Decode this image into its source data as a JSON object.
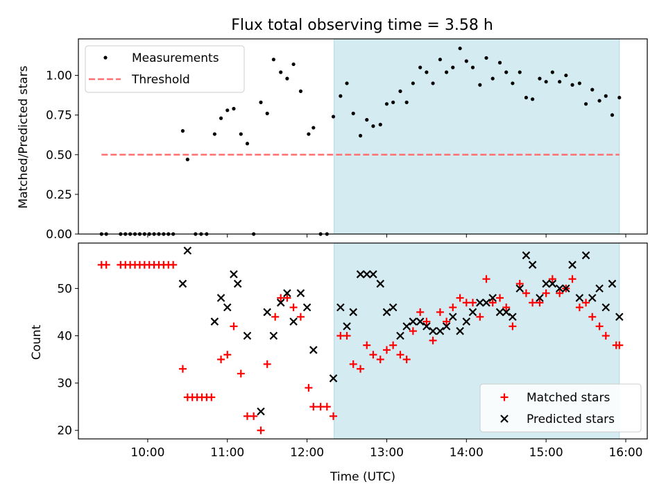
{
  "chart_data": {
    "title": "Flux total observing time = 3.58 h",
    "xlabel": "Time (UTC)",
    "xlim": [
      9.13,
      16.27
    ],
    "xticks": [
      {
        "value": 10,
        "label": "10:00"
      },
      {
        "value": 11,
        "label": "11:00"
      },
      {
        "value": 12,
        "label": "12:00"
      },
      {
        "value": 13,
        "label": "13:00"
      },
      {
        "value": 14,
        "label": "14:00"
      },
      {
        "value": 15,
        "label": "15:00"
      },
      {
        "value": 16,
        "label": "16:00"
      }
    ],
    "shaded_span": {
      "x": [
        12.34,
        15.92
      ],
      "color": "#add8e6"
    },
    "colors": {
      "measurements": "#000000",
      "threshold": "#ff7070",
      "matched": "#ff0000",
      "predicted": "#000000"
    },
    "top": {
      "type": "scatter",
      "ylabel": "Matched/Predicted stars",
      "ylim": [
        0,
        1.23
      ],
      "yticks": [
        "0.00",
        "0.25",
        "0.50",
        "0.75",
        "1.00"
      ],
      "legend_position": "upper left",
      "threshold": {
        "name": "Threshold",
        "value": 0.5,
        "x": [
          9.42,
          15.92
        ]
      },
      "series": [
        {
          "name": "Measurements",
          "x": [
            9.42,
            9.48,
            9.66,
            9.72,
            9.78,
            9.84,
            9.9,
            9.96,
            10.02,
            10.08,
            10.14,
            10.2,
            10.26,
            10.32,
            10.44,
            10.5,
            10.6,
            10.67,
            10.74,
            10.84,
            10.92,
            11.0,
            11.08,
            11.17,
            11.25,
            11.33,
            11.42,
            11.5,
            11.58,
            11.67,
            11.75,
            11.83,
            11.92,
            12.02,
            12.08,
            12.17,
            12.25,
            12.33,
            12.42,
            12.5,
            12.58,
            12.67,
            12.75,
            12.83,
            12.92,
            13.0,
            13.08,
            13.17,
            13.25,
            13.33,
            13.42,
            13.5,
            13.58,
            13.67,
            13.75,
            13.83,
            13.92,
            14.0,
            14.08,
            14.17,
            14.25,
            14.33,
            14.42,
            14.5,
            14.58,
            14.67,
            14.75,
            14.83,
            14.92,
            15.0,
            15.08,
            15.17,
            15.25,
            15.33,
            15.42,
            15.5,
            15.58,
            15.67,
            15.75,
            15.83,
            15.92
          ],
          "y": [
            0,
            0,
            0,
            0,
            0,
            0,
            0,
            0,
            0,
            0,
            0,
            0,
            0,
            0,
            0.65,
            0.47,
            0,
            0,
            0,
            0.63,
            0.73,
            0.78,
            0.79,
            0.63,
            0.57,
            0,
            0.83,
            0.76,
            1.1,
            1.02,
            0.98,
            1.07,
            0.9,
            0.63,
            0.67,
            0,
            0,
            0.74,
            0.87,
            0.95,
            0.76,
            0.62,
            0.72,
            0.68,
            0.69,
            0.82,
            0.83,
            0.9,
            0.83,
            0.95,
            1.05,
            1.02,
            0.95,
            1.1,
            1.02,
            1.05,
            1.17,
            1.09,
            1.05,
            0.94,
            1.11,
            0.98,
            1.08,
            1.02,
            0.95,
            1.02,
            0.86,
            0.85,
            0.98,
            0.96,
            1.02,
            0.96,
            1.0,
            0.94,
            0.95,
            0.82,
            0.91,
            0.84,
            0.87,
            0.75,
            0.86
          ]
        }
      ]
    },
    "bottom": {
      "type": "scatter",
      "ylabel": "Count",
      "ylim": [
        18.2,
        59.6
      ],
      "yticks": [
        "20",
        "30",
        "40",
        "50"
      ],
      "legend_position": "lower right",
      "series": [
        {
          "name": "Matched stars",
          "marker": "plus",
          "x": [
            9.42,
            9.48,
            9.66,
            9.72,
            9.78,
            9.84,
            9.9,
            9.96,
            10.02,
            10.08,
            10.14,
            10.2,
            10.26,
            10.32,
            10.44,
            10.5,
            10.56,
            10.62,
            10.68,
            10.74,
            10.8,
            10.92,
            11.0,
            11.08,
            11.17,
            11.25,
            11.33,
            11.42,
            11.5,
            11.6,
            11.67,
            11.75,
            11.83,
            11.92,
            12.02,
            12.08,
            12.17,
            12.25,
            12.33,
            12.42,
            12.5,
            12.58,
            12.67,
            12.75,
            12.83,
            12.92,
            13.0,
            13.08,
            13.17,
            13.25,
            13.33,
            13.42,
            13.5,
            13.58,
            13.67,
            13.75,
            13.83,
            13.92,
            14.0,
            14.08,
            14.17,
            14.25,
            14.33,
            14.42,
            14.5,
            14.58,
            14.67,
            14.75,
            14.83,
            14.92,
            15.0,
            15.08,
            15.17,
            15.25,
            15.33,
            15.42,
            15.5,
            15.58,
            15.67,
            15.75,
            15.88,
            15.92
          ],
          "y": [
            55,
            55,
            55,
            55,
            55,
            55,
            55,
            55,
            55,
            55,
            55,
            55,
            55,
            55,
            33,
            27,
            27,
            27,
            27,
            27,
            27,
            35,
            36,
            42,
            32,
            23,
            23,
            20,
            34,
            44,
            48,
            48,
            46,
            44,
            29,
            25,
            25,
            25,
            23,
            40,
            40,
            34,
            33,
            38,
            36,
            35,
            37,
            38,
            36,
            35,
            41,
            45,
            43,
            39,
            45,
            43,
            46,
            48,
            47,
            47,
            44,
            52,
            47,
            48,
            46,
            42,
            51,
            49,
            47,
            47,
            49,
            52,
            49,
            50,
            52,
            46,
            47,
            44,
            42,
            40,
            38,
            38
          ]
        },
        {
          "name": "Predicted stars",
          "marker": "x",
          "x": [
            10.44,
            10.5,
            10.84,
            10.92,
            11.0,
            11.08,
            11.13,
            11.25,
            11.42,
            11.5,
            11.58,
            11.67,
            11.75,
            11.83,
            11.92,
            12.0,
            12.08,
            12.33,
            12.42,
            12.5,
            12.58,
            12.67,
            12.75,
            12.83,
            12.92,
            13.0,
            13.08,
            13.17,
            13.25,
            13.33,
            13.42,
            13.5,
            13.58,
            13.67,
            13.75,
            13.83,
            13.92,
            14.0,
            14.08,
            14.17,
            14.25,
            14.33,
            14.42,
            14.5,
            14.58,
            14.67,
            14.75,
            14.83,
            14.92,
            15.0,
            15.08,
            15.17,
            15.25,
            15.33,
            15.42,
            15.5,
            15.58,
            15.67,
            15.75,
            15.83,
            15.92
          ],
          "y": [
            51,
            58,
            43,
            48,
            46,
            53,
            51,
            40,
            24,
            45,
            40,
            47,
            49,
            43,
            49,
            46,
            37,
            31,
            46,
            42,
            45,
            53,
            53,
            53,
            51,
            45,
            46,
            40,
            42,
            43,
            43,
            42,
            41,
            41,
            42,
            44,
            41,
            43,
            45,
            47,
            47,
            48,
            45,
            45,
            44,
            50,
            57,
            55,
            48,
            51,
            51,
            50,
            50,
            55,
            48,
            57,
            48,
            50,
            46,
            51,
            44
          ]
        }
      ]
    }
  }
}
